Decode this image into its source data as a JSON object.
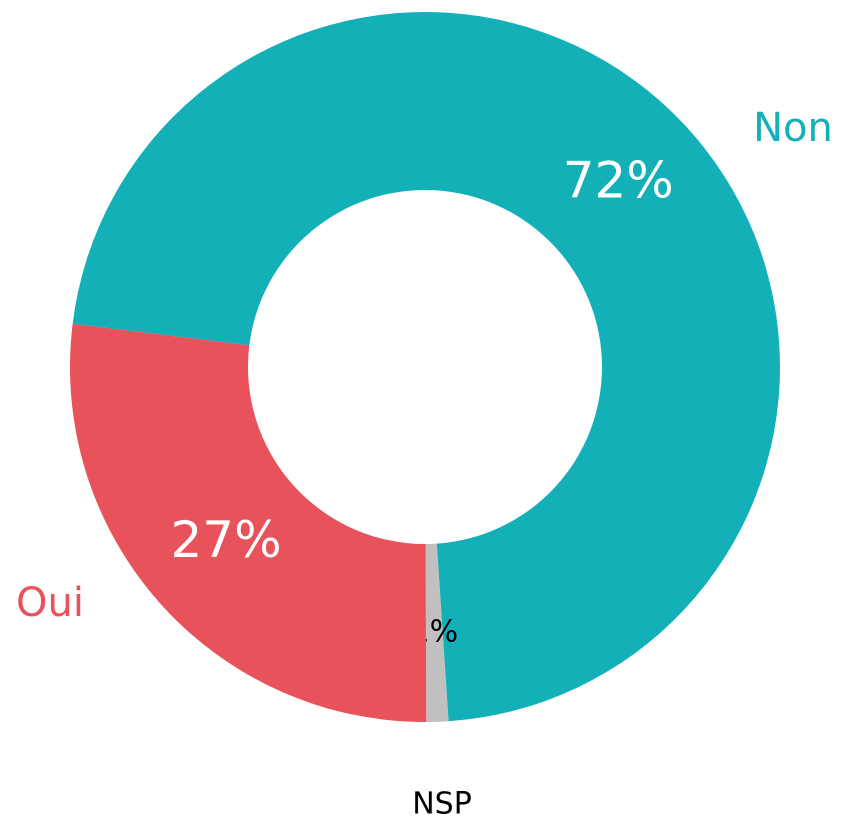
{
  "chart_data": {
    "type": "donut",
    "categories": [
      "Non",
      "NSP",
      "Oui"
    ],
    "values": [
      72,
      1,
      27
    ],
    "value_labels": [
      "72%",
      "1%",
      "27%"
    ],
    "colors": [
      "#14b0b8",
      "#c0c0c0",
      "#e8525a"
    ]
  }
}
